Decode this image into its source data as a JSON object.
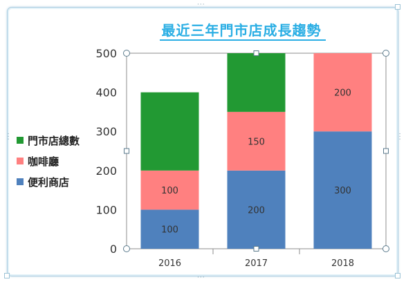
{
  "chart_data": {
    "type": "bar",
    "stacked": true,
    "title": "最近三年門市店成長趨勢",
    "categories": [
      "2016",
      "2017",
      "2018"
    ],
    "series": [
      {
        "name": "便利商店",
        "color": "#4f81bd",
        "values": [
          100,
          200,
          300
        ]
      },
      {
        "name": "咖啡廳",
        "color": "#ff8080",
        "values": [
          100,
          150,
          200
        ]
      },
      {
        "name": "門市店總數",
        "color": "#229933",
        "values": [
          200,
          150,
          0
        ]
      }
    ],
    "ylim": [
      0,
      500
    ],
    "yticks": [
      0,
      100,
      200,
      300,
      400,
      500
    ],
    "xlabel": "",
    "ylabel": "",
    "data_labels_for": [
      "便利商店",
      "咖啡廳"
    ],
    "legend_position": "left",
    "grid": false
  },
  "legend": {
    "items": [
      {
        "label": "門市店總數",
        "color": "#229933"
      },
      {
        "label": "咖啡廳",
        "color": "#ff8080"
      },
      {
        "label": "便利商店",
        "color": "#4f81bd"
      }
    ]
  }
}
